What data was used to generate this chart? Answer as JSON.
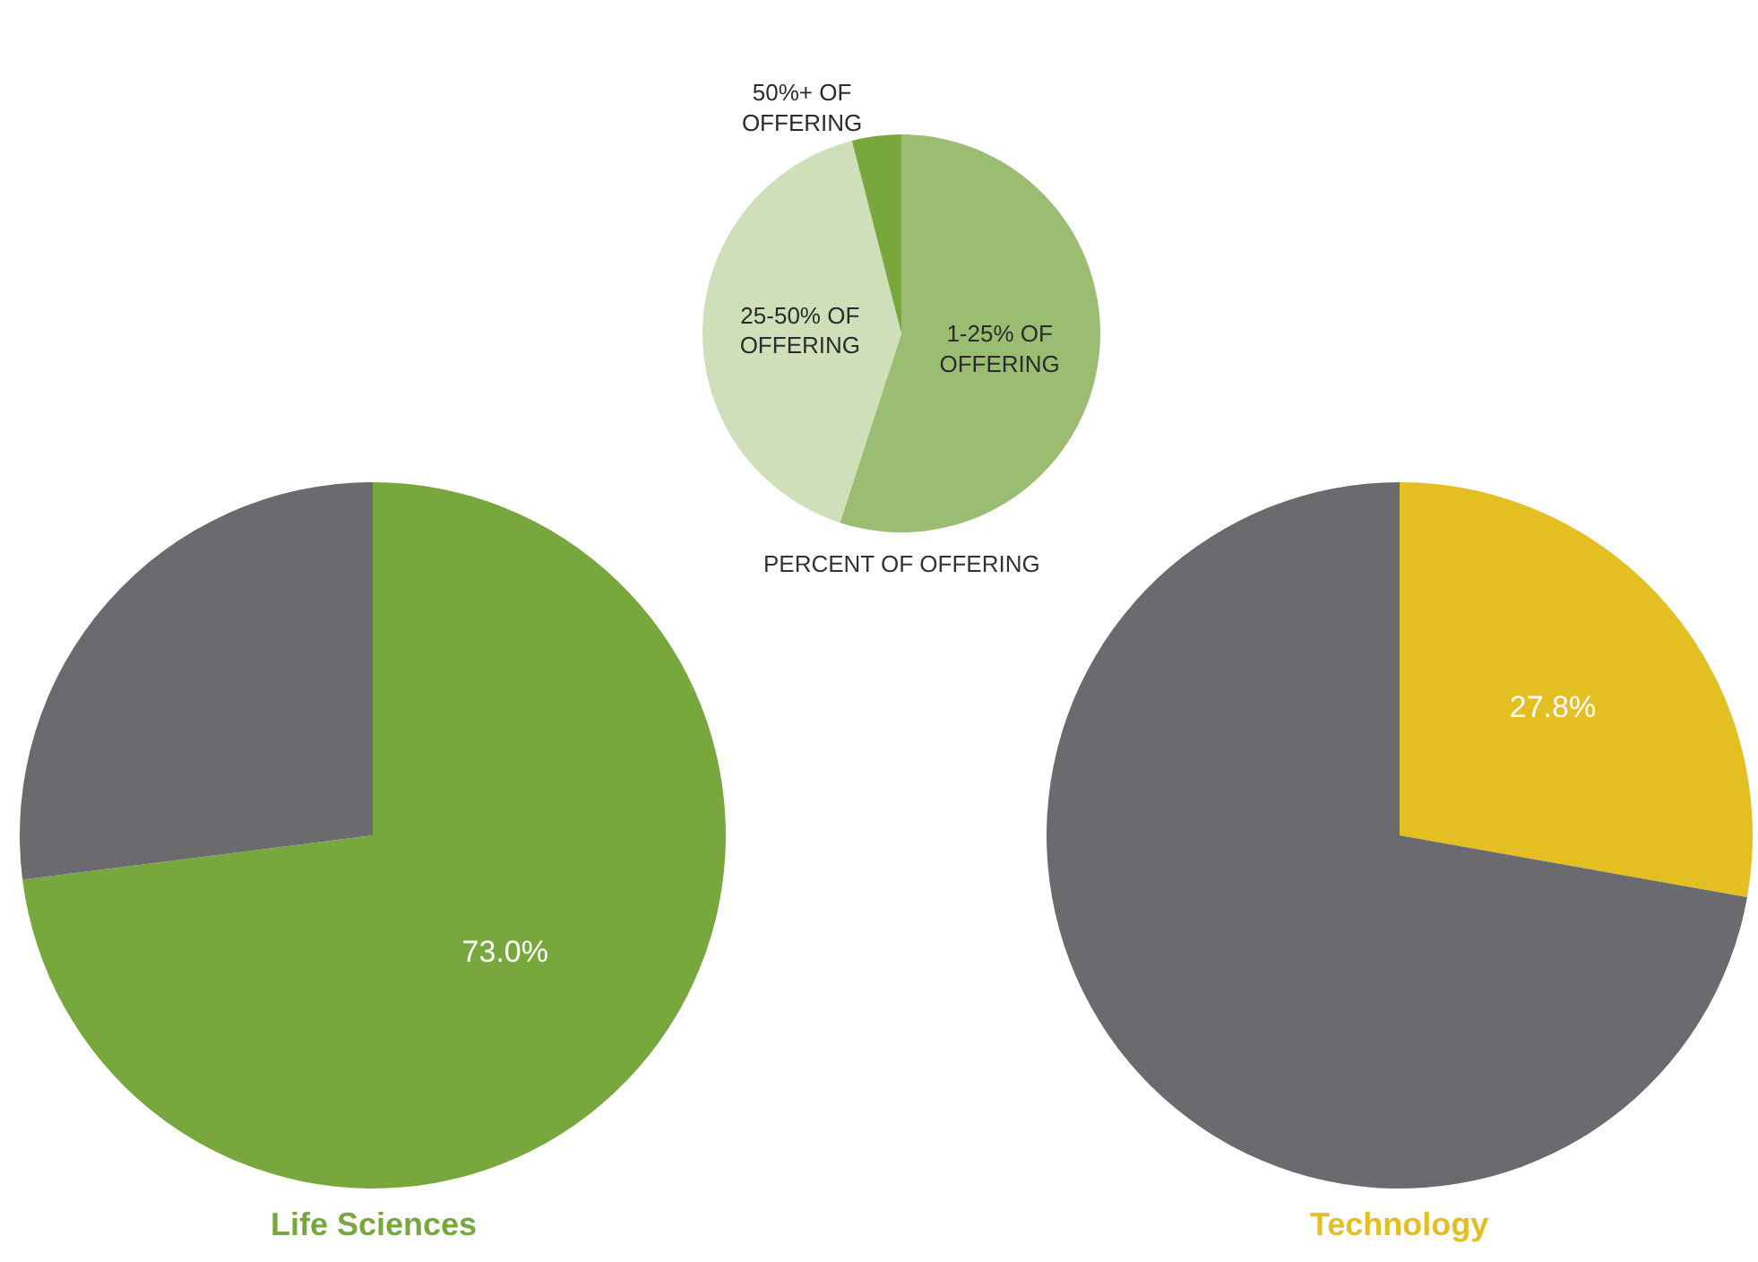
{
  "chart_data": [
    {
      "type": "pie",
      "title": "Life Sciences",
      "categories": [
        null,
        null
      ],
      "values": [
        73.0,
        27.0
      ],
      "colors": [
        "#78a73e",
        "#6b6b6f"
      ],
      "value_labels": [
        "73.0%",
        null
      ]
    },
    {
      "type": "pie",
      "title": "PERCENT OF OFFERING",
      "categories": [
        "1-25% OF OFFERING",
        "25-50% OF OFFERING",
        "50%+ OF OFFERING"
      ],
      "values": [
        55,
        41,
        4
      ],
      "colors": [
        "#9bbd72",
        "#cfdfba",
        "#78a73e"
      ]
    },
    {
      "type": "pie",
      "title": "Technology",
      "categories": [
        null,
        null
      ],
      "values": [
        27.8,
        72.2
      ],
      "colors": [
        "#e3bf22",
        "#6b6b6f"
      ],
      "value_labels": [
        "27.8%",
        null
      ]
    }
  ]
}
